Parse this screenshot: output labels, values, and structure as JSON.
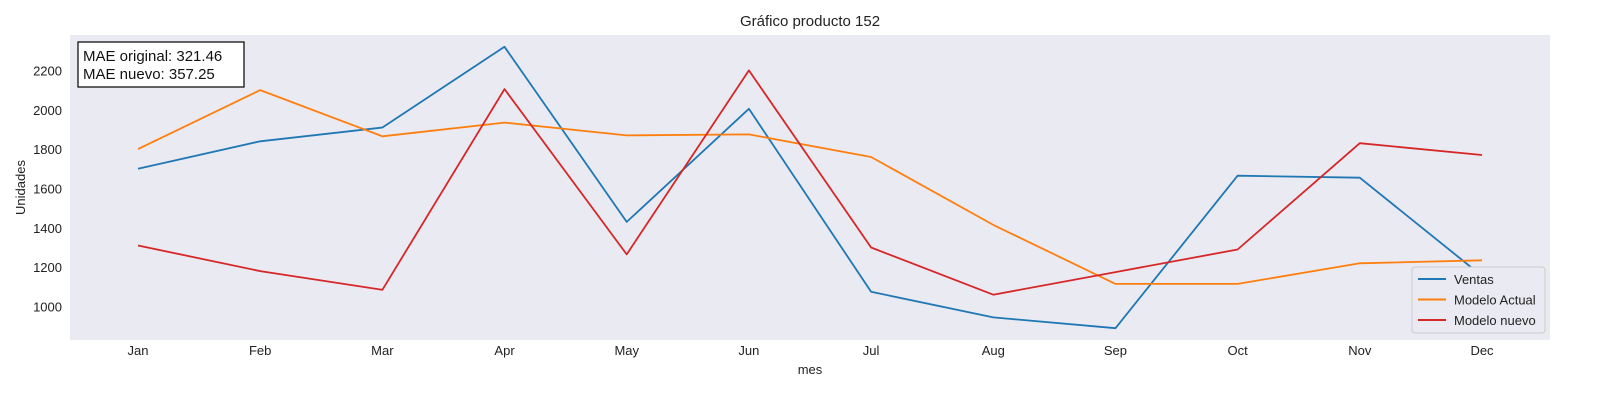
{
  "chart_data": {
    "type": "line",
    "title": "Gráfico producto 152",
    "xlabel": "mes",
    "ylabel": "Unidades",
    "categories": [
      "Jan",
      "Feb",
      "Mar",
      "Apr",
      "May",
      "Jun",
      "Jul",
      "Aug",
      "Sep",
      "Oct",
      "Nov",
      "Dec"
    ],
    "yticks": [
      1000,
      1200,
      1400,
      1600,
      1800,
      2000,
      2200
    ],
    "ylim": [
      830,
      2380
    ],
    "grid": false,
    "legend_position": "lower-right",
    "series": [
      {
        "name": "Ventas",
        "color": "#1f77b4",
        "values": [
          1700,
          1840,
          1910,
          2320,
          1430,
          2005,
          1075,
          945,
          890,
          1665,
          1655,
          1155
        ]
      },
      {
        "name": "Modelo Actual",
        "color": "#ff7f0e",
        "values": [
          1800,
          2100,
          1865,
          1935,
          1870,
          1875,
          1760,
          1415,
          1115,
          1115,
          1220,
          1235
        ]
      },
      {
        "name": "Modelo nuevo",
        "color": "#d62728",
        "values": [
          1310,
          1180,
          1085,
          2105,
          1265,
          2200,
          1300,
          1060,
          1175,
          1290,
          1830,
          1770
        ]
      }
    ],
    "annotations": [
      "MAE original: 321.46",
      "MAE nuevo: 357.25"
    ]
  },
  "colors": {
    "plot_background": "#eaeaf2",
    "legend_background": "#eaeaf2"
  }
}
